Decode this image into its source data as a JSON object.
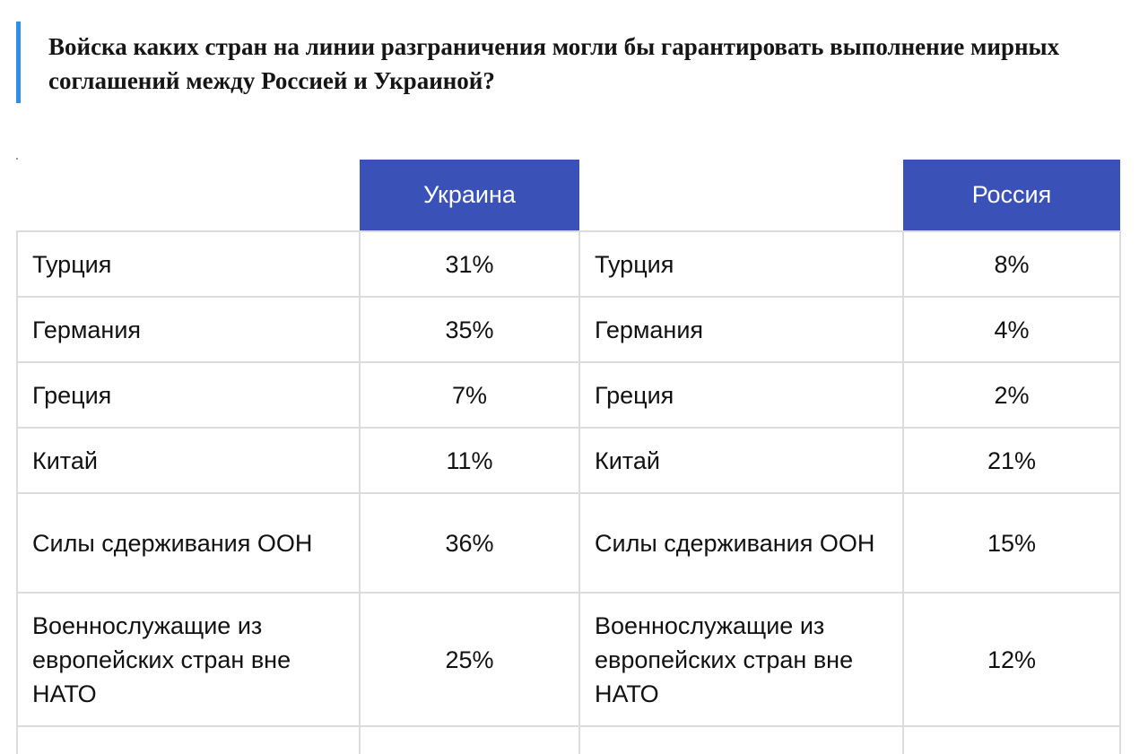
{
  "title": "Войска каких стран на линии разграничения могли бы гарантировать выполнение мирных соглашений между Россией и Украиной?",
  "colors": {
    "accent_bar": "#2f8ee6",
    "header_bg": "#3a52b8",
    "header_text": "#ffffff",
    "border": "#dcdcdc"
  },
  "table": {
    "headers": {
      "ukraine": "Украина",
      "russia": "Россия"
    },
    "rows": [
      {
        "country": "Турция",
        "ukraine": "31%",
        "russia": "8%"
      },
      {
        "country": "Германия",
        "ukraine": "35%",
        "russia": "4%"
      },
      {
        "country": "Греция",
        "ukraine": "7%",
        "russia": "2%"
      },
      {
        "country": "Китай",
        "ukraine": "11%",
        "russia": "21%"
      },
      {
        "country": "Силы сдерживания ООН",
        "ukraine": "36%",
        "russia": "15%"
      },
      {
        "country": "Военнослужащие из европейских стран вне НАТО",
        "ukraine": "25%",
        "russia": "12%"
      }
    ]
  }
}
